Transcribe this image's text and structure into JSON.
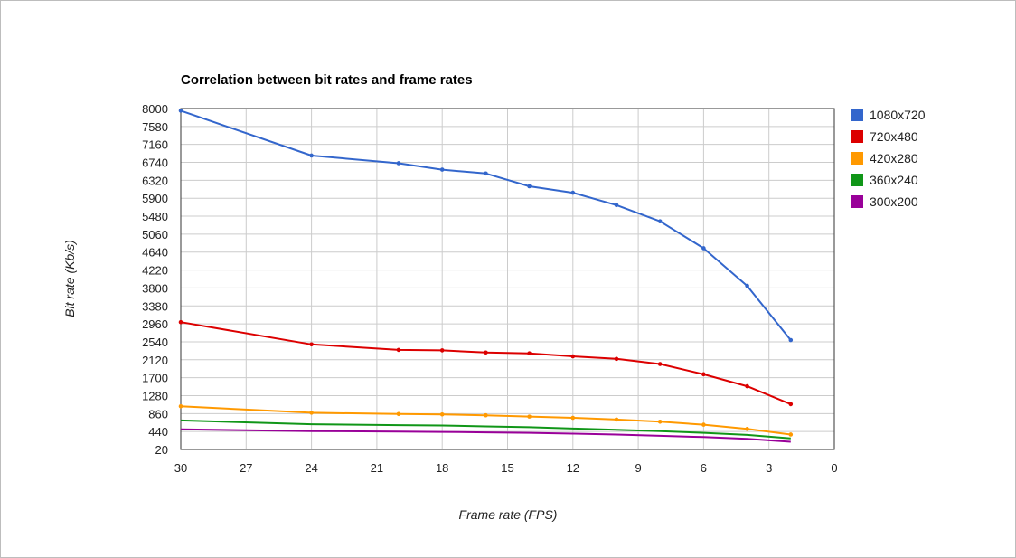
{
  "chart_data": {
    "type": "line",
    "title": "Correlation between bit rates and frame rates",
    "xlabel": "Frame rate (FPS)",
    "ylabel": "Bit rate (Kb/s)",
    "xlim": [
      30,
      0
    ],
    "ylim": [
      20,
      8000
    ],
    "x_ticks": [
      "30",
      "27",
      "24",
      "21",
      "18",
      "15",
      "12",
      "9",
      "6",
      "3",
      "0"
    ],
    "y_ticks": [
      "8000",
      "7580",
      "7160",
      "6740",
      "6320",
      "5900",
      "5480",
      "5060",
      "4640",
      "4220",
      "3800",
      "3380",
      "2960",
      "2540",
      "2120",
      "1700",
      "1280",
      "860",
      "440",
      "20"
    ],
    "grid": true,
    "legend_position": "right",
    "series": [
      {
        "name": "1080x720",
        "color": "#3366cc",
        "markers": true,
        "points": [
          [
            30,
            7950
          ],
          [
            24,
            6900
          ],
          [
            20,
            6720
          ],
          [
            18,
            6570
          ],
          [
            16,
            6480
          ],
          [
            14,
            6180
          ],
          [
            12,
            6030
          ],
          [
            10,
            5740
          ],
          [
            8,
            5360
          ],
          [
            6,
            4730
          ],
          [
            4,
            3850
          ],
          [
            2,
            2580
          ]
        ]
      },
      {
        "name": "720x480",
        "color": "#dc0000",
        "markers": true,
        "points": [
          [
            30,
            3000
          ],
          [
            24,
            2480
          ],
          [
            20,
            2350
          ],
          [
            18,
            2340
          ],
          [
            16,
            2290
          ],
          [
            14,
            2270
          ],
          [
            12,
            2200
          ],
          [
            10,
            2140
          ],
          [
            8,
            2020
          ],
          [
            6,
            1780
          ],
          [
            4,
            1500
          ],
          [
            2,
            1080
          ]
        ]
      },
      {
        "name": "420x280",
        "color": "#ff9900",
        "markers": true,
        "points": [
          [
            30,
            1030
          ],
          [
            24,
            880
          ],
          [
            20,
            850
          ],
          [
            18,
            840
          ],
          [
            16,
            820
          ],
          [
            14,
            790
          ],
          [
            12,
            760
          ],
          [
            10,
            720
          ],
          [
            8,
            670
          ],
          [
            6,
            600
          ],
          [
            4,
            500
          ],
          [
            2,
            370
          ]
        ]
      },
      {
        "name": "360x240",
        "color": "#109618",
        "markers": false,
        "points": [
          [
            30,
            700
          ],
          [
            24,
            610
          ],
          [
            20,
            590
          ],
          [
            18,
            580
          ],
          [
            16,
            560
          ],
          [
            14,
            540
          ],
          [
            12,
            510
          ],
          [
            10,
            480
          ],
          [
            8,
            450
          ],
          [
            6,
            410
          ],
          [
            4,
            360
          ],
          [
            2,
            280
          ]
        ]
      },
      {
        "name": "300x200",
        "color": "#990099",
        "markers": false,
        "points": [
          [
            30,
            490
          ],
          [
            24,
            450
          ],
          [
            20,
            440
          ],
          [
            18,
            430
          ],
          [
            16,
            420
          ],
          [
            14,
            410
          ],
          [
            12,
            390
          ],
          [
            10,
            370
          ],
          [
            8,
            340
          ],
          [
            6,
            310
          ],
          [
            4,
            270
          ],
          [
            2,
            200
          ]
        ]
      }
    ]
  }
}
